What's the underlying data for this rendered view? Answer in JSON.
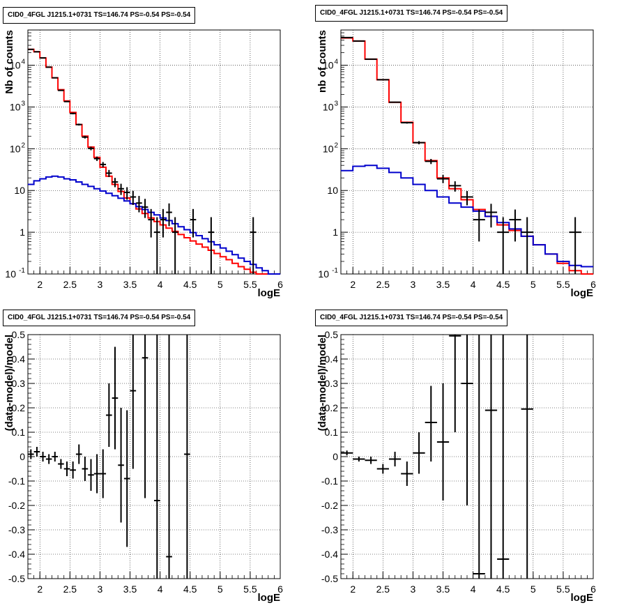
{
  "chart_data": [
    {
      "type": "step-histogram",
      "title": "CID0_4FGL J1215.1+0731 TS=146.74 PS=-0.54 PS=-0.54",
      "xlabel": "logE",
      "ylabel": "Nb of counts",
      "xlim": [
        1.8,
        6
      ],
      "ylim": [
        0.1,
        70000
      ],
      "yscale": "log",
      "grid": true,
      "x_ticks": [
        "2",
        "2.5",
        "3",
        "3.5",
        "4",
        "4.5",
        "5",
        "5.5",
        "6"
      ],
      "y_ticks": [
        {
          "value": 0.1,
          "label": "10",
          "exp": "-1"
        },
        {
          "value": 1,
          "label": "1",
          "exp": ""
        },
        {
          "value": 10,
          "label": "10",
          "exp": ""
        },
        {
          "value": 100,
          "label": "10",
          "exp": "2"
        },
        {
          "value": 1000,
          "label": "10",
          "exp": "3"
        },
        {
          "value": 10000,
          "label": "10",
          "exp": "4"
        }
      ],
      "bins": [
        1.8,
        1.9,
        2.0,
        2.1,
        2.2,
        2.3,
        2.4,
        2.5,
        2.6,
        2.7,
        2.8,
        2.9,
        3.0,
        3.1,
        3.2,
        3.3,
        3.4,
        3.5,
        3.6,
        3.7,
        3.8,
        3.9,
        4.0,
        4.1,
        4.2,
        4.3,
        4.4,
        4.5,
        4.6,
        4.7,
        4.8,
        4.9,
        5.0,
        5.1,
        5.2,
        5.3,
        5.4,
        5.5,
        5.6,
        5.7,
        5.8,
        5.9,
        6.0
      ],
      "series": [
        {
          "name": "",
          "color": "#ff0000",
          "values": [
            24000,
            21000,
            15000,
            9000,
            5000,
            2600,
            1400,
            740,
            380,
            200,
            110,
            62,
            36,
            22,
            14,
            9.5,
            6.6,
            4.8,
            3.6,
            2.8,
            2.2,
            1.8,
            1.5,
            1.25,
            1.05,
            0.88,
            0.74,
            0.62,
            0.52,
            0.44,
            0.37,
            0.31,
            0.26,
            0.22,
            0.18,
            0.15,
            0.13,
            0.11,
            0.1,
            0.1,
            0.1,
            0.1
          ]
        },
        {
          "name": "",
          "color": "#0000cc",
          "values": [
            14,
            17,
            19,
            21,
            22,
            21,
            19,
            18,
            16,
            14,
            12.5,
            11,
            9.7,
            8.6,
            7.5,
            6.5,
            5.6,
            4.8,
            4.1,
            3.5,
            3.0,
            2.6,
            2.2,
            1.9,
            1.6,
            1.35,
            1.15,
            0.98,
            0.83,
            0.7,
            0.59,
            0.5,
            0.42,
            0.35,
            0.29,
            0.24,
            0.2,
            0.17,
            0.14,
            0.12,
            0.1,
            0.1
          ]
        }
      ],
      "points": [
        {
          "x": 1.85,
          "y": 24000,
          "xerr": 0.05,
          "ylo": 23500,
          "yhi": 24500
        },
        {
          "x": 1.95,
          "y": 21000,
          "xerr": 0.05,
          "ylo": 20600,
          "yhi": 21400
        },
        {
          "x": 2.05,
          "y": 15000,
          "xerr": 0.05,
          "ylo": 14700,
          "yhi": 15300
        },
        {
          "x": 2.15,
          "y": 9000,
          "xerr": 0.05,
          "ylo": 8800,
          "yhi": 9200
        },
        {
          "x": 2.25,
          "y": 5000,
          "xerr": 0.05,
          "ylo": 4900,
          "yhi": 5100
        },
        {
          "x": 2.35,
          "y": 2500,
          "xerr": 0.05,
          "ylo": 2450,
          "yhi": 2550
        },
        {
          "x": 2.45,
          "y": 1350,
          "xerr": 0.05,
          "ylo": 1310,
          "yhi": 1390
        },
        {
          "x": 2.55,
          "y": 700,
          "xerr": 0.05,
          "ylo": 670,
          "yhi": 730
        },
        {
          "x": 2.65,
          "y": 380,
          "xerr": 0.05,
          "ylo": 360,
          "yhi": 400
        },
        {
          "x": 2.75,
          "y": 190,
          "xerr": 0.05,
          "ylo": 176,
          "yhi": 204
        },
        {
          "x": 2.85,
          "y": 102,
          "xerr": 0.05,
          "ylo": 92,
          "yhi": 112
        },
        {
          "x": 2.95,
          "y": 58,
          "xerr": 0.05,
          "ylo": 51,
          "yhi": 65
        },
        {
          "x": 3.05,
          "y": 42,
          "xerr": 0.05,
          "ylo": 36,
          "yhi": 48
        },
        {
          "x": 3.15,
          "y": 26,
          "xerr": 0.05,
          "ylo": 21,
          "yhi": 31
        },
        {
          "x": 3.25,
          "y": 16,
          "xerr": 0.05,
          "ylo": 12,
          "yhi": 20
        },
        {
          "x": 3.35,
          "y": 11,
          "xerr": 0.05,
          "ylo": 7.8,
          "yhi": 14.5
        },
        {
          "x": 3.45,
          "y": 9,
          "xerr": 0.05,
          "ylo": 6,
          "yhi": 12
        },
        {
          "x": 3.55,
          "y": 7,
          "xerr": 0.05,
          "ylo": 4.5,
          "yhi": 9.8
        },
        {
          "x": 3.65,
          "y": 5,
          "xerr": 0.05,
          "ylo": 3,
          "yhi": 7.4
        },
        {
          "x": 3.75,
          "y": 4,
          "xerr": 0.05,
          "ylo": 2.2,
          "yhi": 6.3
        },
        {
          "x": 3.85,
          "y": 2,
          "xerr": 0.05,
          "ylo": 0.75,
          "yhi": 3.6
        },
        {
          "x": 3.95,
          "y": 1,
          "xerr": 0.05,
          "ylo": 0.1,
          "yhi": 2.3
        },
        {
          "x": 4.05,
          "y": 2,
          "xerr": 0.05,
          "ylo": 0.75,
          "yhi": 3.6
        },
        {
          "x": 4.15,
          "y": 3,
          "xerr": 0.05,
          "ylo": 1.4,
          "yhi": 4.9
        },
        {
          "x": 4.25,
          "y": 1,
          "xerr": 0.05,
          "ylo": 0.1,
          "yhi": 2.3
        },
        {
          "x": 4.55,
          "y": 2,
          "xerr": 0.05,
          "ylo": 0.75,
          "yhi": 3.6
        },
        {
          "x": 4.85,
          "y": 1,
          "xerr": 0.05,
          "ylo": 0.1,
          "yhi": 2.3
        },
        {
          "x": 5.55,
          "y": 1,
          "xerr": 0.05,
          "ylo": 0.1,
          "yhi": 2.3
        }
      ]
    },
    {
      "type": "step-histogram",
      "title": "CID0_4FGL J1215.1+0731 TS=146.74 PS=-0.54 PS=-0.54",
      "xlabel": "logE",
      "ylabel": "nb of counts",
      "xlim": [
        1.8,
        6
      ],
      "ylim": [
        0.1,
        70000
      ],
      "yscale": "log",
      "grid": true,
      "x_ticks": [
        "2",
        "2.5",
        "3",
        "3.5",
        "4",
        "4.5",
        "5",
        "5.5",
        "6"
      ],
      "y_ticks": [
        {
          "value": 0.1,
          "label": "10",
          "exp": "-1"
        },
        {
          "value": 1,
          "label": "1",
          "exp": ""
        },
        {
          "value": 10,
          "label": "10",
          "exp": ""
        },
        {
          "value": 100,
          "label": "10",
          "exp": "2"
        },
        {
          "value": 1000,
          "label": "10",
          "exp": "3"
        },
        {
          "value": 10000,
          "label": "10",
          "exp": "4"
        }
      ],
      "bins": [
        1.8,
        2.0,
        2.2,
        2.4,
        2.6,
        2.8,
        3.0,
        3.2,
        3.4,
        3.6,
        3.8,
        4.0,
        4.2,
        4.4,
        4.6,
        4.8,
        5.0,
        5.2,
        5.4,
        5.6,
        5.8,
        6.0
      ],
      "series": [
        {
          "name": "",
          "color": "#ff0000",
          "values": [
            45000,
            38000,
            14000,
            4500,
            1300,
            430,
            140,
            52,
            20,
            11,
            6,
            3.5,
            2.4,
            1.5,
            1.1,
            0.8,
            0.5,
            0.3,
            0.18,
            0.12,
            0.1
          ]
        },
        {
          "name": "",
          "color": "#0000cc",
          "values": [
            30,
            38,
            40,
            34,
            27,
            20,
            14,
            10,
            7,
            5,
            4,
            3.2,
            2.4,
            1.7,
            1.2,
            0.8,
            0.5,
            0.3,
            0.2,
            0.16,
            0.15
          ]
        }
      ],
      "points": [
        {
          "x": 1.9,
          "y": 46000,
          "xerr": 0.1,
          "ylo": 45500,
          "yhi": 46500
        },
        {
          "x": 2.1,
          "y": 38000,
          "xerr": 0.1,
          "ylo": 37600,
          "yhi": 38400
        },
        {
          "x": 2.3,
          "y": 14000,
          "xerr": 0.1,
          "ylo": 13800,
          "yhi": 14200
        },
        {
          "x": 2.5,
          "y": 4500,
          "xerr": 0.1,
          "ylo": 4400,
          "yhi": 4600
        },
        {
          "x": 2.7,
          "y": 1300,
          "xerr": 0.1,
          "ylo": 1260,
          "yhi": 1340
        },
        {
          "x": 2.9,
          "y": 420,
          "xerr": 0.1,
          "ylo": 400,
          "yhi": 440
        },
        {
          "x": 3.1,
          "y": 140,
          "xerr": 0.1,
          "ylo": 128,
          "yhi": 152
        },
        {
          "x": 3.3,
          "y": 50,
          "xerr": 0.1,
          "ylo": 43,
          "yhi": 57
        },
        {
          "x": 3.5,
          "y": 19,
          "xerr": 0.1,
          "ylo": 15,
          "yhi": 23.5
        },
        {
          "x": 3.7,
          "y": 13,
          "xerr": 0.1,
          "ylo": 9.4,
          "yhi": 16.6
        },
        {
          "x": 3.9,
          "y": 7,
          "xerr": 0.1,
          "ylo": 4.4,
          "yhi": 9.7
        },
        {
          "x": 4.1,
          "y": 2,
          "xerr": 0.1,
          "ylo": 0.6,
          "yhi": 3.5
        },
        {
          "x": 4.3,
          "y": 3,
          "xerr": 0.1,
          "ylo": 1.3,
          "yhi": 4.8
        },
        {
          "x": 4.5,
          "y": 1,
          "xerr": 0.1,
          "ylo": 0.1,
          "yhi": 2.3
        },
        {
          "x": 4.7,
          "y": 2,
          "xerr": 0.1,
          "ylo": 0.6,
          "yhi": 3.5
        },
        {
          "x": 4.9,
          "y": 1,
          "xerr": 0.1,
          "ylo": 0.1,
          "yhi": 2.3
        },
        {
          "x": 5.7,
          "y": 1,
          "xerr": 0.1,
          "ylo": 0.1,
          "yhi": 2.3
        }
      ]
    },
    {
      "type": "scatter",
      "title": "CID0_4FGL J1215.1+0731 TS=146.74 PS=-0.54 PS=-0.54",
      "xlabel": "logE",
      "ylabel": "(data-model)/model",
      "xlim": [
        1.8,
        6
      ],
      "ylim": [
        -0.5,
        0.5
      ],
      "yscale": "linear",
      "grid": true,
      "x_ticks": [
        "2",
        "2.5",
        "3",
        "3.5",
        "4",
        "4.5",
        "5",
        "5.5",
        "6"
      ],
      "y_ticks": [
        "-0.5",
        "-0.4",
        "-0.3",
        "-0.2",
        "-0.1",
        "0",
        "0.1",
        "0.2",
        "0.3",
        "0.4",
        "0.5"
      ],
      "points": [
        {
          "x": 1.85,
          "y": 0.01,
          "xerr": 0.05,
          "ylo": -0.01,
          "yhi": 0.03
        },
        {
          "x": 1.95,
          "y": 0.02,
          "xerr": 0.05,
          "ylo": 0.0,
          "yhi": 0.04
        },
        {
          "x": 2.05,
          "y": 0.0,
          "xerr": 0.05,
          "ylo": -0.02,
          "yhi": 0.02
        },
        {
          "x": 2.15,
          "y": -0.01,
          "xerr": 0.05,
          "ylo": -0.03,
          "yhi": 0.01
        },
        {
          "x": 2.25,
          "y": 0.0,
          "xerr": 0.05,
          "ylo": -0.02,
          "yhi": 0.02
        },
        {
          "x": 2.35,
          "y": -0.03,
          "xerr": 0.05,
          "ylo": -0.05,
          "yhi": -0.01
        },
        {
          "x": 2.45,
          "y": -0.05,
          "xerr": 0.05,
          "ylo": -0.08,
          "yhi": -0.02
        },
        {
          "x": 2.55,
          "y": -0.055,
          "xerr": 0.05,
          "ylo": -0.09,
          "yhi": -0.02
        },
        {
          "x": 2.65,
          "y": 0.01,
          "xerr": 0.05,
          "ylo": -0.03,
          "yhi": 0.05
        },
        {
          "x": 2.75,
          "y": -0.05,
          "xerr": 0.05,
          "ylo": -0.1,
          "yhi": 0.0
        },
        {
          "x": 2.85,
          "y": -0.075,
          "xerr": 0.05,
          "ylo": -0.14,
          "yhi": -0.01
        },
        {
          "x": 2.95,
          "y": -0.07,
          "xerr": 0.05,
          "ylo": -0.15,
          "yhi": 0.01
        },
        {
          "x": 3.05,
          "y": -0.07,
          "xerr": 0.05,
          "ylo": -0.17,
          "yhi": 0.03
        },
        {
          "x": 3.15,
          "y": 0.17,
          "xerr": 0.05,
          "ylo": 0.04,
          "yhi": 0.3
        },
        {
          "x": 3.25,
          "y": 0.24,
          "xerr": 0.05,
          "ylo": 0.03,
          "yhi": 0.45
        },
        {
          "x": 3.35,
          "y": -0.035,
          "xerr": 0.05,
          "ylo": -0.27,
          "yhi": 0.2
        },
        {
          "x": 3.45,
          "y": -0.09,
          "xerr": 0.05,
          "ylo": -0.37,
          "yhi": 0.19
        },
        {
          "x": 3.55,
          "y": 0.27,
          "xerr": 0.05,
          "ylo": -0.05,
          "yhi": 0.5
        },
        {
          "x": 3.75,
          "y": 0.405,
          "xerr": 0.05,
          "ylo": -0.17,
          "yhi": 0.5
        },
        {
          "x": 3.95,
          "y": -0.18,
          "xerr": 0.05,
          "ylo": -0.5,
          "yhi": 0.5
        },
        {
          "x": 4.15,
          "y": -0.41,
          "xerr": 0.05,
          "ylo": -0.5,
          "yhi": 0.5
        },
        {
          "x": 4.45,
          "y": 0.01,
          "xerr": 0.05,
          "ylo": -0.5,
          "yhi": 0.5
        }
      ]
    },
    {
      "type": "scatter",
      "title": "CID0_4FGL J1215.1+0731 TS=146.74 PS=-0.54 PS=-0.54",
      "xlabel": "logE",
      "ylabel": "(data-model)/model",
      "xlim": [
        1.8,
        6
      ],
      "ylim": [
        -0.5,
        0.5
      ],
      "yscale": "linear",
      "grid": true,
      "x_ticks": [
        "2",
        "2.5",
        "3",
        "3.5",
        "4",
        "4.5",
        "5",
        "5.5",
        "6"
      ],
      "y_ticks": [
        "-0.5",
        "-0.4",
        "-0.3",
        "-0.2",
        "-0.1",
        "0",
        "0.1",
        "0.2",
        "0.3",
        "0.4",
        "0.5"
      ],
      "points": [
        {
          "x": 1.9,
          "y": 0.015,
          "xerr": 0.1,
          "ylo": 0.005,
          "yhi": 0.025
        },
        {
          "x": 2.1,
          "y": -0.01,
          "xerr": 0.1,
          "ylo": -0.02,
          "yhi": 0.0
        },
        {
          "x": 2.3,
          "y": -0.015,
          "xerr": 0.1,
          "ylo": -0.03,
          "yhi": 0.0
        },
        {
          "x": 2.5,
          "y": -0.05,
          "xerr": 0.1,
          "ylo": -0.07,
          "yhi": -0.03
        },
        {
          "x": 2.7,
          "y": -0.01,
          "xerr": 0.1,
          "ylo": -0.04,
          "yhi": 0.02
        },
        {
          "x": 2.9,
          "y": -0.07,
          "xerr": 0.1,
          "ylo": -0.12,
          "yhi": -0.02
        },
        {
          "x": 3.1,
          "y": 0.015,
          "xerr": 0.1,
          "ylo": -0.07,
          "yhi": 0.1
        },
        {
          "x": 3.3,
          "y": 0.14,
          "xerr": 0.1,
          "ylo": -0.02,
          "yhi": 0.29
        },
        {
          "x": 3.5,
          "y": 0.06,
          "xerr": 0.1,
          "ylo": -0.18,
          "yhi": 0.3
        },
        {
          "x": 3.7,
          "y": 0.495,
          "xerr": 0.1,
          "ylo": 0.1,
          "yhi": 0.5
        },
        {
          "x": 3.9,
          "y": 0.3,
          "xerr": 0.1,
          "ylo": -0.2,
          "yhi": 0.5
        },
        {
          "x": 4.1,
          "y": -0.48,
          "xerr": 0.1,
          "ylo": -0.5,
          "yhi": 0.5
        },
        {
          "x": 4.3,
          "y": 0.19,
          "xerr": 0.1,
          "ylo": -0.5,
          "yhi": 0.5
        },
        {
          "x": 4.5,
          "y": -0.42,
          "xerr": 0.1,
          "ylo": -0.5,
          "yhi": 0.5
        },
        {
          "x": 4.9,
          "y": 0.195,
          "xerr": 0.1,
          "ylo": -0.5,
          "yhi": 0.5
        }
      ]
    }
  ]
}
